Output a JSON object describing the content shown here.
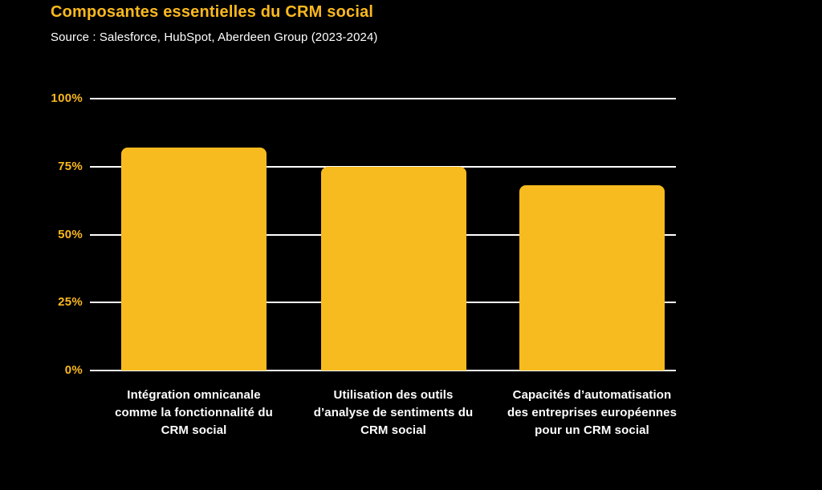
{
  "header": {
    "title": "Composantes essentielles du CRM social",
    "source": "Source : Salesforce, HubSpot, Aberdeen Group (2023-2024)"
  },
  "colors": {
    "background": "#000000",
    "accent_yellow": "#FBB91E",
    "bar_yellow": "#F8BB1F",
    "gridline_white": "#FFFFFF",
    "text_white": "#FFFFFF"
  },
  "chart_data": {
    "type": "bar",
    "title": "Composantes essentielles du CRM social",
    "subtitle": "Source : Salesforce, HubSpot, Aberdeen Group (2023-2024)",
    "categories": [
      "Intégration omnicanale\ncomme la fonctionnalité du\nCRM social",
      "Utilisation des outils\nd’analyse de sentiments du\nCRM social",
      "Capacités d’automatisation\ndes entreprises européennes\npour un CRM social"
    ],
    "values": [
      82,
      75,
      68
    ],
    "xlabel": "",
    "ylabel": "",
    "ylim": [
      0,
      100
    ],
    "yticks": [
      0,
      25,
      50,
      75,
      100
    ],
    "ytick_suffix": "%",
    "grid": true,
    "legend": false
  }
}
